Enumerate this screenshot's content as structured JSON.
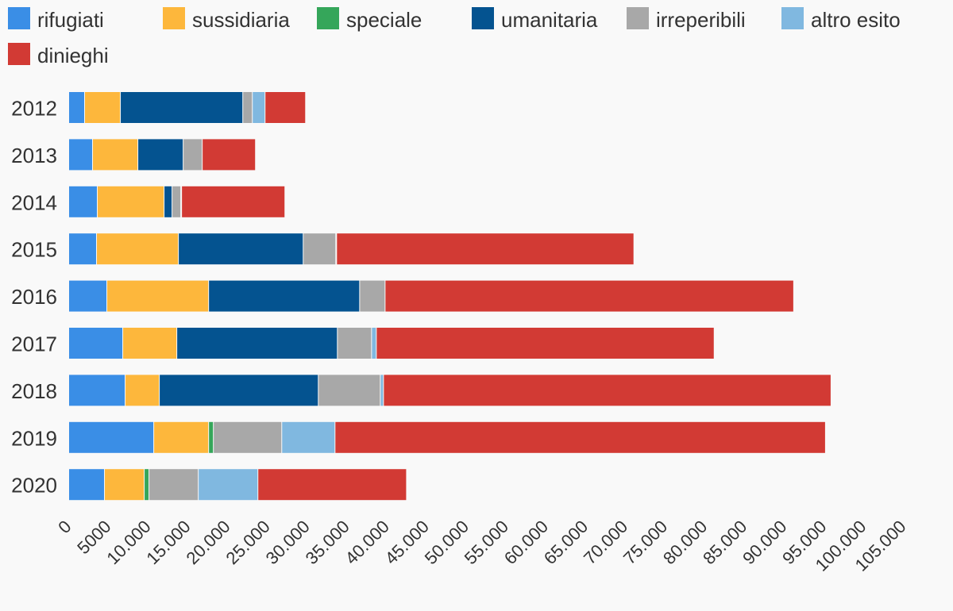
{
  "colors": {
    "background": "#f9f9f9",
    "text": "#333333"
  },
  "chart_data": {
    "type": "bar",
    "orientation": "horizontal",
    "stacked": true,
    "categories": [
      "2012",
      "2013",
      "2014",
      "2015",
      "2016",
      "2017",
      "2018",
      "2019",
      "2020"
    ],
    "series": [
      {
        "name": "rifugiati",
        "color": "#3a8ee6",
        "values": [
          2000,
          3000,
          3600,
          3500,
          4800,
          6800,
          7100,
          10700,
          4500
        ]
      },
      {
        "name": "sussidiaria",
        "color": "#fdb73c",
        "values": [
          4500,
          5700,
          8400,
          10300,
          12800,
          6800,
          4300,
          6900,
          5000
        ]
      },
      {
        "name": "speciale",
        "color": "#35a65a",
        "values": [
          0,
          0,
          0,
          0,
          0,
          0,
          0,
          600,
          600
        ]
      },
      {
        "name": "umanitaria",
        "color": "#045390",
        "values": [
          15400,
          5700,
          1000,
          15700,
          19000,
          20200,
          20000,
          0,
          0
        ]
      },
      {
        "name": "irreperibili",
        "color": "#a8a8a8",
        "values": [
          1200,
          2400,
          1100,
          4100,
          3200,
          4300,
          7800,
          8600,
          6200
        ]
      },
      {
        "name": "altro esito",
        "color": "#80b8e0",
        "values": [
          1600,
          0,
          100,
          100,
          0,
          600,
          400,
          6700,
          7500
        ]
      },
      {
        "name": "dinieghi",
        "color": "#d23a34",
        "values": [
          5100,
          6700,
          13000,
          37400,
          51400,
          42500,
          56300,
          61700,
          18700
        ]
      }
    ],
    "x_tick_labels": [
      "0",
      "5000",
      "10.000",
      "15.000",
      "20.000",
      "25.000",
      "30.000",
      "35.000",
      "40.000",
      "45.000",
      "50.000",
      "55.000",
      "60.000",
      "65.000",
      "70.000",
      "75.000",
      "80.000",
      "85.000",
      "90.000",
      "95.000",
      "100.000",
      "105.000"
    ],
    "xlim": [
      0,
      105000
    ],
    "x_tick_step": 5000,
    "grid": false,
    "legend_position": "top-left"
  }
}
